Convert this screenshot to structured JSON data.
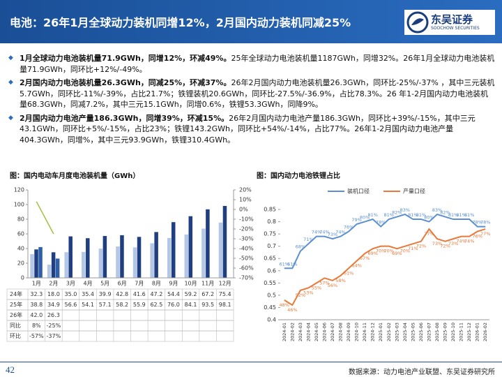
{
  "header": {
    "title": "电池：26年1月全球动力装机同增12%，2月国内动力装机同减25%",
    "logo": "东吴证券",
    "logo_en": "SOOCHOW SECURITIES"
  },
  "bullets": [
    {
      "bold": "1月全球动力电池装机量71.9GWh，同增12%，环减49%。",
      "text": "25年全球动力电池装机量1187GWh，同增32%。26年1月全球动力电池装机量71.9GWh，同环比+12%/-49%。"
    },
    {
      "bold": "2月国内动力电池装机量26.3GWh，同减25%，环减37%。",
      "text": "26年2月国内动力电池装机量26.3GWh，同环比-25%/-37% ，其中三元装机5.7GWh，同环比-11%/-39%，占比21.7%；铁锂装机20.6GWh，同环比-27.5%/-36.9%，占比78.3%。26 年1-2月国内动力电池装机量68.3GWh，同减7.2%，其中三元15.1GWh，同增0.6%，铁锂53.3GWh，同降9%。"
    },
    {
      "bold": "2月国内动力电池产量186.3GWh，同增39%，环减15%。",
      "text": "26年2月国内动力电池产量186.3GWh，同环比+39%/-15%，其中三元43.1GWh，同环比+5%/-15%，占比23%；铁锂143.2GWh，同环比+54%/-14%，占比77%。26年1-2月国内动力电池产量404.3GWh，同增%，其中三元93.9GWh，铁锂310.4GWh。"
    }
  ],
  "chart_data": [
    {
      "type": "bar",
      "title": "图：国内电动车月度电池装机量（GWh）",
      "categories": [
        "1月",
        "2月",
        "3月",
        "4月",
        "5月",
        "6月",
        "7月",
        "8月",
        "9月",
        "10月",
        "11月",
        "12月"
      ],
      "series": [
        {
          "name": "24年",
          "color": "#b4c7e7",
          "values": [
            32.3,
            18.0,
            35.0,
            35.4,
            39.9,
            42.8,
            41.6,
            47.2,
            54.4,
            59.2,
            67.2,
            75.4
          ],
          "value_labels": [
            "32.3",
            "18.0",
            "35.0",
            "35.4",
            "39.9",
            "42.8",
            "41.6",
            "47.2",
            "54.4",
            "59.2",
            "67.2",
            "75.4"
          ]
        },
        {
          "name": "25年",
          "color": "#1f3f80",
          "values": [
            38.8,
            34.9,
            56.6,
            54.1,
            57.1,
            58.2,
            55.9,
            62.5,
            76.0,
            84.1,
            93.5,
            98.1
          ],
          "value_labels": [
            "38.8",
            "34.9",
            "56.6",
            "54.1",
            "57.1",
            "58.2",
            "55.9",
            "62.5",
            "76.0",
            "84.1",
            "93.5",
            "98.1"
          ]
        },
        {
          "name": "26年",
          "color": "#2e5fa8",
          "values": [
            42.0,
            26.3,
            null,
            null,
            null,
            null,
            null,
            null,
            null,
            null,
            null,
            null
          ],
          "value_labels": [
            "42.0",
            "26.3",
            null,
            null,
            null,
            null,
            null,
            null,
            null,
            null,
            null,
            null
          ]
        },
        {
          "name": "同比",
          "color": "#9bc23c",
          "axis": "y2",
          "values": [
            8,
            -25,
            null,
            null,
            null,
            null,
            null,
            null,
            null,
            null,
            null,
            null
          ],
          "value_labels": [
            "8%",
            "-25%",
            null,
            null,
            null,
            null,
            null,
            null,
            null,
            null,
            null,
            null
          ]
        }
      ],
      "table": [
        {
          "name": "环比",
          "values": [
            -57,
            -37,
            null,
            null,
            null,
            null,
            null,
            null,
            null,
            null,
            null,
            null
          ],
          "value_labels": [
            "-57%",
            "-37%",
            null,
            null,
            null,
            null,
            null,
            null,
            null,
            null,
            null,
            null
          ]
        }
      ],
      "ylim": [
        0,
        120
      ],
      "yticks": [
        0,
        20,
        40,
        60,
        80,
        100,
        120
      ],
      "y2lim": [
        -70,
        20
      ],
      "y2ticks": [
        {
          "value": 20,
          "label": "20%"
        },
        {
          "value": 10,
          "label": "10%"
        },
        {
          "value": 0,
          "label": "0%"
        },
        {
          "value": -10,
          "label": "-10%"
        },
        {
          "value": -20,
          "label": "-20%"
        },
        {
          "value": -30,
          "label": "-30%"
        },
        {
          "value": -40,
          "label": "-40%"
        },
        {
          "value": -50,
          "label": "-50%"
        },
        {
          "value": -60,
          "label": "-60%"
        },
        {
          "value": -70,
          "label": "-70%"
        }
      ]
    },
    {
      "type": "line",
      "title": "图：国内动力电池铁锂占比",
      "x": [
        "2024-01",
        "2024-02",
        "2024-03",
        "2024-04",
        "2024-05",
        "2024-06",
        "2024-07",
        "2024-08",
        "2024-09",
        "2024-10",
        "2024-11",
        "2024-12",
        "2025-01",
        "2025-02",
        "2025-03",
        "2025-04",
        "2025-05",
        "2025-06",
        "2025-07",
        "2025-08",
        "2025-09",
        "2025-10",
        "2025-11",
        "2025-12",
        "2026-01",
        "2026-02"
      ],
      "series": [
        {
          "name": "装机口径",
          "color": "#5b8fd1",
          "values": [
            0.61,
            0.61,
            0.68,
            0.71,
            0.74,
            0.74,
            0.73,
            0.74,
            0.76,
            0.79,
            0.8,
            0.81,
            0.78,
            0.81,
            0.82,
            0.83,
            0.81,
            0.81,
            0.8,
            0.83,
            0.82,
            0.81,
            0.81,
            0.81,
            0.78,
            0.78
          ],
          "value_labels": [
            "61%",
            "61%",
            "68%",
            "71%",
            "74%",
            "74%",
            "73%",
            "74%",
            "76%",
            "79%",
            "80%",
            "81%",
            "78%",
            "81%",
            "82%",
            "83%",
            "81%",
            "81%",
            "80%",
            "83%",
            "82%",
            "81%",
            "81%",
            "81%",
            "78%",
            "78%"
          ]
        },
        {
          "name": "产量口径",
          "color": "#e8793a",
          "values": [
            0.48,
            0.46,
            0.52,
            0.53,
            0.55,
            0.57,
            0.56,
            0.58,
            0.61,
            0.64,
            0.67,
            0.69,
            0.7,
            0.7,
            0.69,
            0.7,
            0.71,
            0.72,
            0.77,
            0.73,
            0.72,
            0.73,
            0.74,
            0.74,
            0.76,
            0.77
          ],
          "value_labels": [
            "48%",
            "46%",
            "52%",
            "53%",
            "55%",
            "57%",
            "56%",
            "58%",
            "61%",
            "64%",
            "67%",
            "69%",
            "70%",
            "70%",
            "69%",
            "70%",
            "71%",
            "72%",
            "77%",
            "73%",
            "72%",
            "73%",
            "74%",
            "74%",
            "76%",
            "77%"
          ]
        }
      ],
      "ylim": [
        0.4,
        0.85
      ],
      "yticks": [
        0.4,
        0.45,
        0.5,
        0.55,
        0.6,
        0.65,
        0.7,
        0.75,
        0.8,
        0.85
      ],
      "legend": "top"
    }
  ],
  "footer": {
    "page": "42",
    "source": "数据来源：动力电池产业联盟、东吴证券研究所"
  }
}
